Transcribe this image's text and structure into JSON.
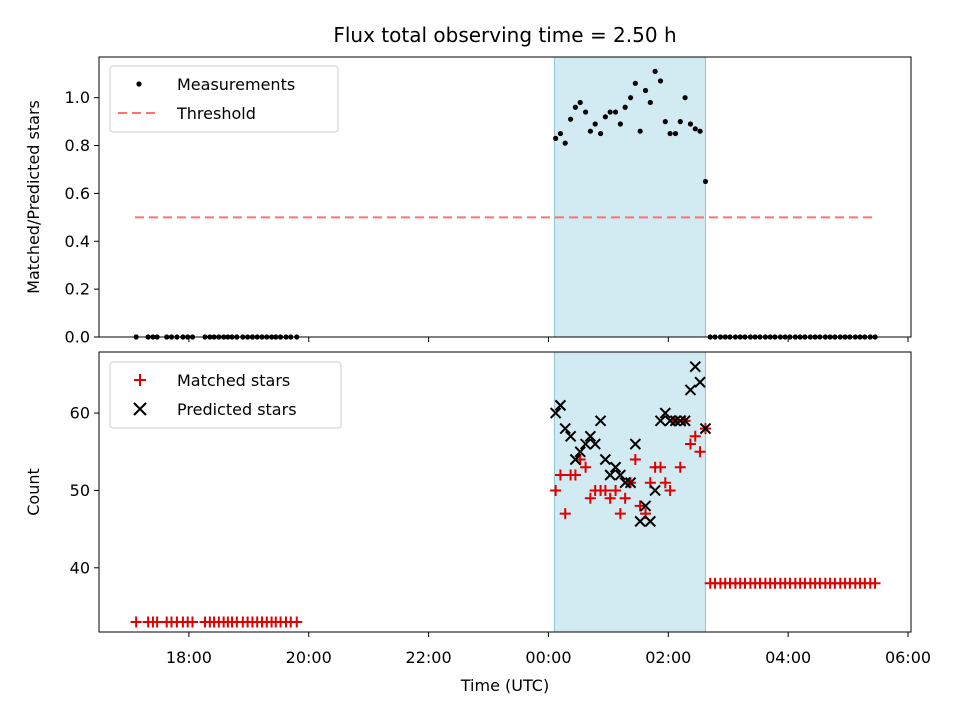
{
  "colors": {
    "measurement": "#000000",
    "threshold": "#ff7070",
    "matched": "#e00000",
    "predicted": "#000000",
    "shade": "#add8e6"
  },
  "chart_data": [
    {
      "type": "scatter",
      "title": "Flux total observing time = 2.50 h",
      "xlabel": "",
      "ylabel": "Matched/Predicted stars",
      "x_units": "hours since 00:00 UTC",
      "xlim": [
        -7.5,
        6.05
      ],
      "ylim": [
        0.0,
        1.17
      ],
      "yticks": [
        0.0,
        0.2,
        0.4,
        0.6,
        0.8,
        1.0
      ],
      "ytick_labels": [
        "0.0",
        "0.2",
        "0.4",
        "0.6",
        "0.8",
        "1.0"
      ],
      "shaded_region": [
        0.1,
        2.62
      ],
      "threshold": {
        "value": 0.5,
        "x_range": [
          -6.9,
          5.45
        ]
      },
      "legend": {
        "position": "top-left",
        "entries": [
          "Measurements",
          "Threshold"
        ]
      },
      "series": [
        {
          "name": "Measurements",
          "x": [
            -6.88,
            -6.68,
            -6.6,
            -6.53,
            -6.37,
            -6.29,
            -6.2,
            -6.1,
            -6.02,
            -5.94,
            -5.73,
            -5.65,
            -5.58,
            -5.5,
            -5.42,
            -5.35,
            -5.28,
            -5.2,
            -5.1,
            -5.02,
            -4.94,
            -4.86,
            -4.78,
            -4.7,
            -4.62,
            -4.55,
            -4.47,
            -4.38,
            -4.3,
            -4.2,
            0.12,
            0.2,
            0.28,
            0.37,
            0.45,
            0.53,
            0.62,
            0.7,
            0.78,
            0.87,
            0.95,
            1.03,
            1.12,
            1.2,
            1.28,
            1.37,
            1.45,
            1.53,
            1.62,
            1.7,
            1.78,
            1.87,
            1.95,
            2.03,
            2.12,
            2.2,
            2.28,
            2.37,
            2.45,
            2.53,
            2.62,
            2.7,
            2.78,
            2.87,
            2.95,
            3.03,
            3.12,
            3.2,
            3.28,
            3.37,
            3.45,
            3.53,
            3.62,
            3.7,
            3.78,
            3.87,
            3.95,
            4.03,
            4.12,
            4.2,
            4.28,
            4.37,
            4.45,
            4.53,
            4.62,
            4.7,
            4.78,
            4.87,
            4.95,
            5.03,
            5.12,
            5.2,
            5.28,
            5.37,
            5.45
          ],
          "y": [
            0,
            0,
            0,
            0,
            0,
            0,
            0,
            0,
            0,
            0,
            0,
            0,
            0,
            0,
            0,
            0,
            0,
            0,
            0,
            0,
            0,
            0,
            0,
            0,
            0,
            0,
            0,
            0,
            0,
            0,
            0.83,
            0.85,
            0.81,
            0.91,
            0.96,
            0.98,
            0.94,
            0.86,
            0.89,
            0.85,
            0.92,
            0.94,
            0.94,
            0.89,
            0.96,
            1.0,
            1.06,
            0.86,
            1.03,
            0.98,
            1.11,
            1.07,
            0.9,
            0.85,
            0.85,
            0.9,
            1.0,
            0.89,
            0.87,
            0.86,
            0.65,
            0,
            0,
            0,
            0,
            0,
            0,
            0,
            0,
            0,
            0,
            0,
            0,
            0,
            0,
            0,
            0,
            0,
            0,
            0,
            0,
            0,
            0,
            0,
            0,
            0,
            0,
            0,
            0,
            0,
            0,
            0,
            0,
            0,
            0
          ]
        }
      ]
    },
    {
      "type": "scatter",
      "title": "",
      "xlabel": "Time (UTC)",
      "ylabel": "Count",
      "x_units": "hours since 00:00 UTC",
      "xlim": [
        -7.5,
        6.05
      ],
      "ylim": [
        31.7,
        67.9
      ],
      "yticks": [
        40,
        50,
        60
      ],
      "ytick_labels": [
        "40",
        "50",
        "60"
      ],
      "xticks": [
        -6,
        -4,
        -2,
        0,
        2,
        4,
        6
      ],
      "xtick_labels": [
        "18:00",
        "20:00",
        "22:00",
        "00:00",
        "02:00",
        "04:00",
        "06:00"
      ],
      "shaded_region": [
        0.1,
        2.62
      ],
      "legend": {
        "position": "top-left",
        "entries": [
          "Matched stars",
          "Predicted stars"
        ]
      },
      "series": [
        {
          "name": "Matched stars",
          "marker": "+",
          "x": [
            -6.88,
            -6.68,
            -6.6,
            -6.53,
            -6.37,
            -6.29,
            -6.2,
            -6.1,
            -6.02,
            -5.94,
            -5.73,
            -5.65,
            -5.58,
            -5.5,
            -5.42,
            -5.35,
            -5.28,
            -5.2,
            -5.1,
            -5.02,
            -4.94,
            -4.86,
            -4.78,
            -4.7,
            -4.62,
            -4.55,
            -4.47,
            -4.38,
            -4.3,
            -4.2,
            0.12,
            0.2,
            0.28,
            0.37,
            0.45,
            0.53,
            0.62,
            0.7,
            0.78,
            0.87,
            0.95,
            1.03,
            1.12,
            1.2,
            1.28,
            1.37,
            1.45,
            1.53,
            1.62,
            1.7,
            1.78,
            1.87,
            1.95,
            2.03,
            2.12,
            2.2,
            2.28,
            2.37,
            2.45,
            2.53,
            2.62,
            2.7,
            2.78,
            2.87,
            2.95,
            3.03,
            3.12,
            3.2,
            3.28,
            3.37,
            3.45,
            3.53,
            3.62,
            3.7,
            3.78,
            3.87,
            3.95,
            4.03,
            4.12,
            4.2,
            4.28,
            4.37,
            4.45,
            4.53,
            4.62,
            4.7,
            4.78,
            4.87,
            4.95,
            5.03,
            5.12,
            5.2,
            5.28,
            5.37,
            5.45
          ],
          "y": [
            33,
            33,
            33,
            33,
            33,
            33,
            33,
            33,
            33,
            33,
            33,
            33,
            33,
            33,
            33,
            33,
            33,
            33,
            33,
            33,
            33,
            33,
            33,
            33,
            33,
            33,
            33,
            33,
            33,
            33,
            50,
            52,
            47,
            52,
            52,
            54,
            53,
            49,
            50,
            50,
            50,
            49,
            50,
            47,
            49,
            51,
            54,
            48,
            47,
            51,
            53,
            53,
            51,
            50,
            59,
            53,
            59,
            56,
            57,
            55,
            58,
            38,
            38,
            38,
            38,
            38,
            38,
            38,
            38,
            38,
            38,
            38,
            38,
            38,
            38,
            38,
            38,
            38,
            38,
            38,
            38,
            38,
            38,
            38,
            38,
            38,
            38,
            38,
            38,
            38,
            38,
            38,
            38,
            38,
            38
          ]
        },
        {
          "name": "Predicted stars",
          "marker": "x",
          "x": [
            0.12,
            0.2,
            0.28,
            0.37,
            0.45,
            0.53,
            0.62,
            0.7,
            0.78,
            0.87,
            0.95,
            1.03,
            1.12,
            1.2,
            1.28,
            1.37,
            1.45,
            1.53,
            1.62,
            1.7,
            1.78,
            1.87,
            1.95,
            2.03,
            2.12,
            2.2,
            2.28,
            2.37,
            2.45,
            2.53,
            2.62
          ],
          "y": [
            60,
            61,
            58,
            57,
            54,
            55,
            56,
            57,
            56,
            59,
            54,
            52,
            53,
            52,
            51,
            51,
            56,
            46,
            48,
            46,
            50,
            59,
            60,
            59,
            59,
            59,
            59,
            63,
            66,
            64,
            58
          ]
        }
      ]
    }
  ]
}
